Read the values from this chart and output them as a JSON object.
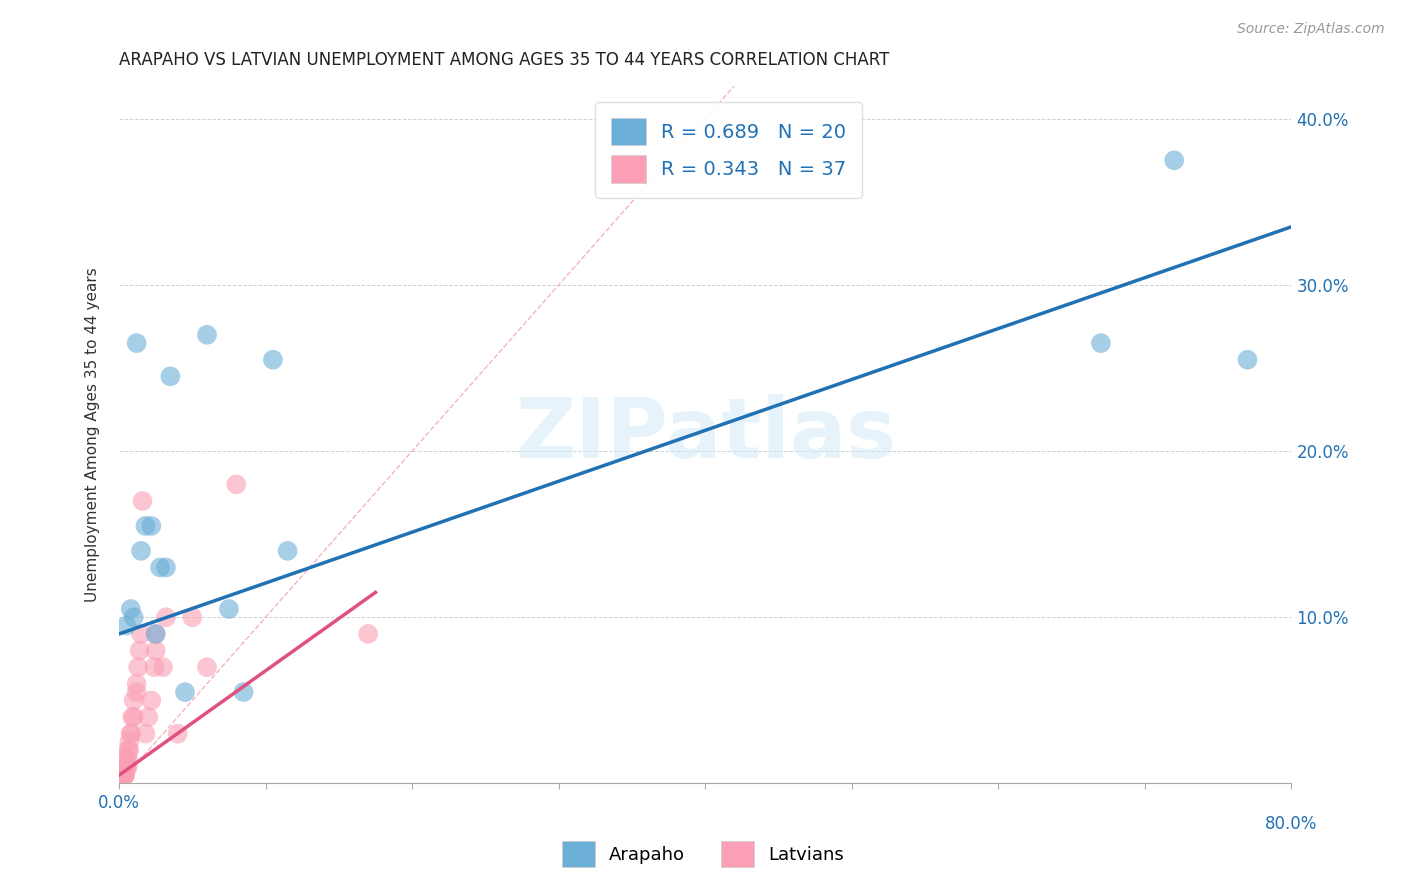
{
  "title": "ARAPAHO VS LATVIAN UNEMPLOYMENT AMONG AGES 35 TO 44 YEARS CORRELATION CHART",
  "source": "Source: ZipAtlas.com",
  "ylabel": "Unemployment Among Ages 35 to 44 years",
  "xlim": [
    0.0,
    0.8
  ],
  "ylim": [
    0.0,
    0.42
  ],
  "xticks": [
    0.0,
    0.1,
    0.2,
    0.3,
    0.4,
    0.5,
    0.6,
    0.7,
    0.8
  ],
  "yticks": [
    0.0,
    0.1,
    0.2,
    0.3,
    0.4
  ],
  "background_color": "#ffffff",
  "watermark": "ZIPatlas",
  "arapaho_color": "#6baed6",
  "latvian_color": "#fa9fb5",
  "arapaho_R": 0.689,
  "arapaho_N": 20,
  "latvian_R": 0.343,
  "latvian_N": 37,
  "legend_labels": [
    "Arapaho",
    "Latvians"
  ],
  "arapaho_x": [
    0.005,
    0.008,
    0.01,
    0.012,
    0.015,
    0.018,
    0.022,
    0.025,
    0.028,
    0.032,
    0.035,
    0.045,
    0.06,
    0.075,
    0.085,
    0.105,
    0.115,
    0.67,
    0.72,
    0.77
  ],
  "arapaho_y": [
    0.095,
    0.105,
    0.1,
    0.265,
    0.14,
    0.155,
    0.155,
    0.09,
    0.13,
    0.13,
    0.245,
    0.055,
    0.27,
    0.105,
    0.055,
    0.255,
    0.14,
    0.265,
    0.375,
    0.255
  ],
  "latvian_x": [
    0.002,
    0.003,
    0.004,
    0.004,
    0.004,
    0.005,
    0.005,
    0.005,
    0.006,
    0.006,
    0.006,
    0.007,
    0.007,
    0.008,
    0.008,
    0.009,
    0.01,
    0.01,
    0.012,
    0.012,
    0.013,
    0.014,
    0.015,
    0.016,
    0.018,
    0.02,
    0.022,
    0.024,
    0.025,
    0.025,
    0.03,
    0.032,
    0.04,
    0.05,
    0.06,
    0.08,
    0.17
  ],
  "latvian_y": [
    0.005,
    0.005,
    0.005,
    0.005,
    0.005,
    0.01,
    0.01,
    0.015,
    0.01,
    0.015,
    0.02,
    0.02,
    0.025,
    0.03,
    0.03,
    0.04,
    0.04,
    0.05,
    0.055,
    0.06,
    0.07,
    0.08,
    0.09,
    0.17,
    0.03,
    0.04,
    0.05,
    0.07,
    0.08,
    0.09,
    0.07,
    0.1,
    0.03,
    0.1,
    0.07,
    0.18,
    0.09
  ],
  "arapaho_line_color": "#2171b5",
  "latvian_line_color": "#e05080",
  "diagonal_color": "#cccccc",
  "arapaho_line_x": [
    0.0,
    0.8
  ],
  "arapaho_line_y": [
    0.09,
    0.335
  ],
  "latvian_line_x": [
    0.0,
    0.175
  ],
  "latvian_line_y": [
    0.005,
    0.115
  ]
}
